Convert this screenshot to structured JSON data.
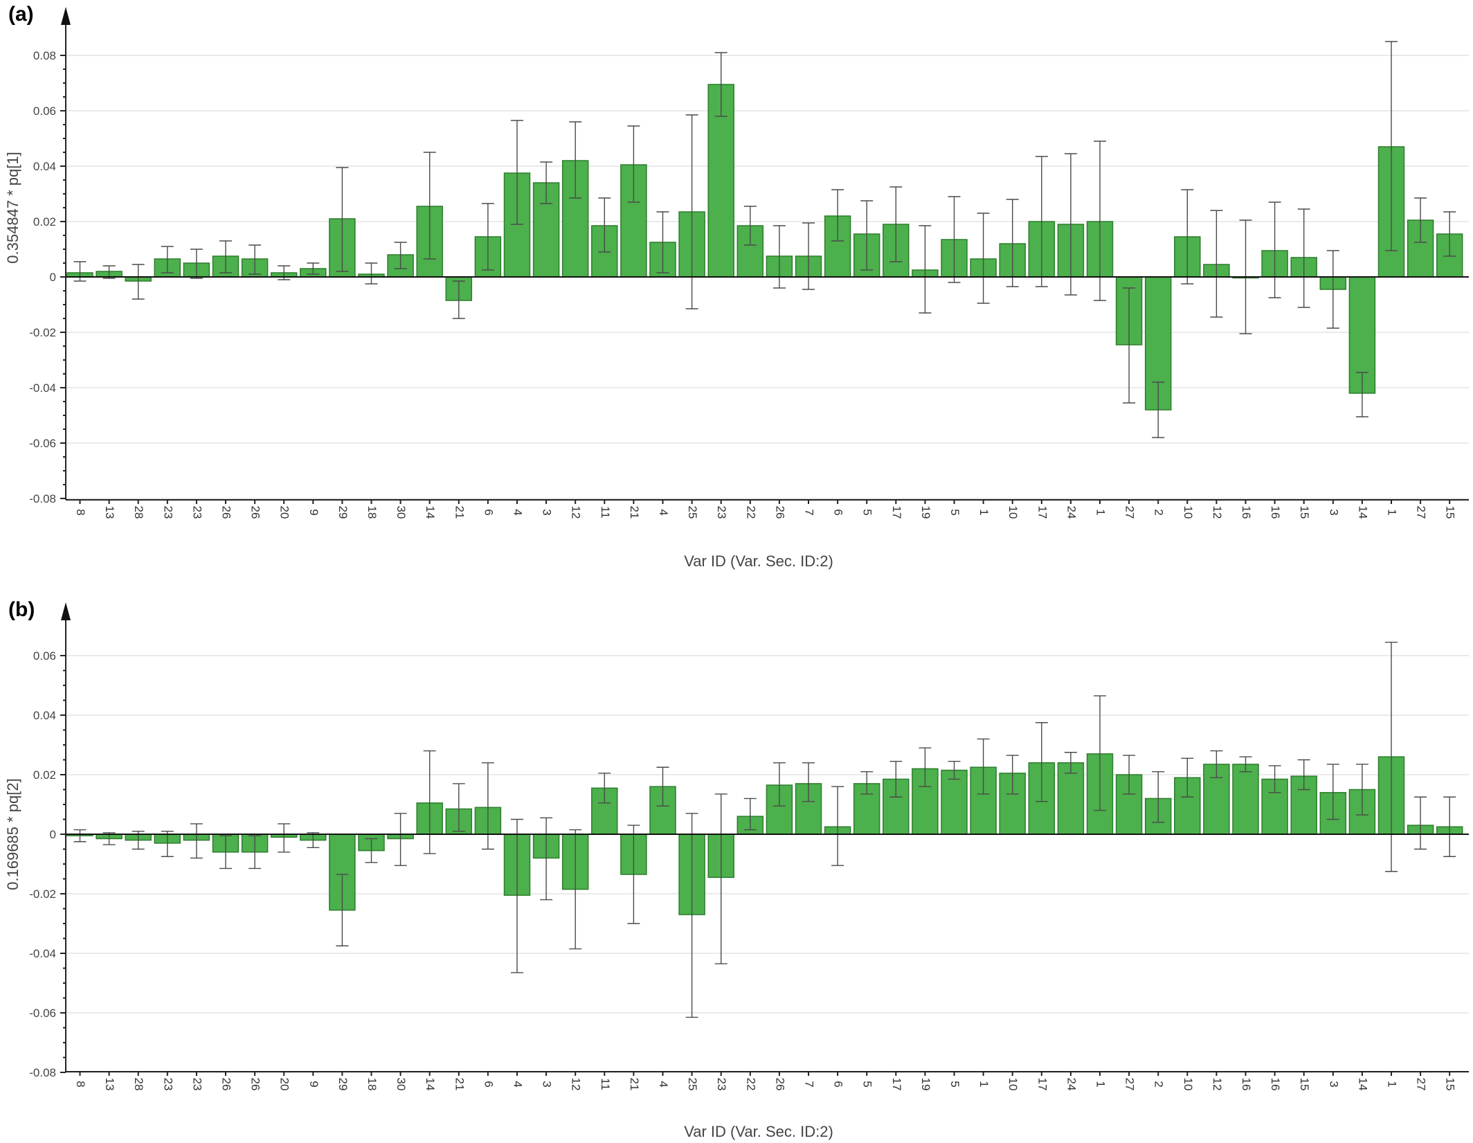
{
  "colors": {
    "bar": "#4cb04c",
    "bar_edge": "#2d7d2d",
    "error_bar": "#4a4a4a",
    "grid": "#e3e3e3"
  },
  "chart_data": [
    {
      "type": "bar",
      "panel_label": "(a)",
      "ylabel": "0.354847 * pq[1]",
      "xlabel": "Var ID (Var. Sec. ID:2)",
      "ylim": [
        -0.08,
        0.08
      ],
      "yticks": [
        "-0.08",
        "-0.06",
        "-0.04",
        "-0.02",
        "0",
        "0.02",
        "0.04",
        "0.06",
        "0.08"
      ],
      "ytick_values": [
        -0.08,
        -0.06,
        -0.04,
        -0.02,
        0,
        0.02,
        0.04,
        0.06,
        0.08
      ],
      "grid": true,
      "error_bars": true,
      "categories": [
        "8",
        "13",
        "28",
        "23",
        "23",
        "26",
        "26",
        "20",
        "9",
        "29",
        "18",
        "30",
        "14",
        "21",
        "6",
        "4",
        "3",
        "12",
        "11",
        "21",
        "4",
        "25",
        "23",
        "22",
        "26",
        "7",
        "6",
        "5",
        "17",
        "19",
        "5",
        "1",
        "10",
        "17",
        "24",
        "1",
        "27",
        "2",
        "10",
        "12",
        "16",
        "16",
        "15",
        "3",
        "14",
        "1",
        "27",
        "15"
      ],
      "values": [
        0.0015,
        0.002,
        -0.0015,
        0.0065,
        0.005,
        0.0075,
        0.0065,
        0.0015,
        0.003,
        0.021,
        0.001,
        0.008,
        0.0255,
        -0.0085,
        0.0145,
        0.0375,
        0.034,
        0.042,
        0.0185,
        0.0405,
        0.0125,
        0.0235,
        0.0695,
        0.0185,
        0.0075,
        0.0075,
        0.022,
        0.0155,
        0.019,
        0.0025,
        0.0135,
        0.0065,
        0.012,
        0.02,
        0.019,
        0.02,
        -0.0245,
        -0.048,
        0.0145,
        0.0045,
        0.0,
        0.0095,
        0.007,
        -0.0045,
        -0.042,
        0.047,
        0.0205,
        0.0155
      ],
      "err_low": [
        -0.0015,
        -0.0005,
        -0.008,
        0.0015,
        -0.0005,
        0.0015,
        0.001,
        -0.001,
        0.001,
        0.002,
        -0.0025,
        0.003,
        0.0065,
        -0.015,
        0.0025,
        0.019,
        0.0265,
        0.0285,
        0.009,
        0.027,
        0.0015,
        -0.0115,
        0.058,
        0.0115,
        -0.004,
        -0.0045,
        0.013,
        0.0025,
        0.0055,
        -0.013,
        -0.002,
        -0.0095,
        -0.0035,
        -0.0035,
        -0.0065,
        -0.0085,
        -0.0455,
        -0.058,
        -0.0025,
        -0.0145,
        -0.0205,
        -0.0075,
        -0.011,
        -0.0185,
        -0.0505,
        0.0095,
        0.0125,
        0.0075
      ],
      "err_high": [
        0.0055,
        0.004,
        0.0045,
        0.011,
        0.01,
        0.013,
        0.0115,
        0.004,
        0.005,
        0.0395,
        0.005,
        0.0125,
        0.045,
        -0.0015,
        0.0265,
        0.0565,
        0.0415,
        0.056,
        0.0285,
        0.0545,
        0.0235,
        0.0585,
        0.081,
        0.0255,
        0.0185,
        0.0195,
        0.0315,
        0.0275,
        0.0325,
        0.0185,
        0.029,
        0.023,
        0.028,
        0.0435,
        0.0445,
        0.049,
        -0.004,
        -0.038,
        0.0315,
        0.024,
        0.0205,
        0.027,
        0.0245,
        0.0095,
        -0.0345,
        0.085,
        0.0285,
        0.0235
      ]
    },
    {
      "type": "bar",
      "panel_label": "(b)",
      "ylabel": "0.169685 * pq[2]",
      "xlabel": "Var ID (Var. Sec. ID:2)",
      "ylim": [
        -0.08,
        0.07
      ],
      "yticks": [
        "-0.08",
        "-0.06",
        "-0.04",
        "-0.02",
        "0",
        "0.02",
        "0.04",
        "0.06"
      ],
      "ytick_values": [
        -0.08,
        -0.06,
        -0.04,
        -0.02,
        0,
        0.02,
        0.04,
        0.06
      ],
      "grid": true,
      "error_bars": true,
      "categories": [
        "8",
        "13",
        "28",
        "23",
        "23",
        "26",
        "26",
        "20",
        "9",
        "29",
        "18",
        "30",
        "14",
        "21",
        "6",
        "4",
        "3",
        "12",
        "11",
        "21",
        "4",
        "25",
        "23",
        "22",
        "26",
        "7",
        "6",
        "5",
        "17",
        "19",
        "5",
        "1",
        "10",
        "17",
        "24",
        "1",
        "27",
        "2",
        "10",
        "12",
        "16",
        "16",
        "15",
        "3",
        "14",
        "1",
        "27",
        "15"
      ],
      "values": [
        -0.0005,
        -0.0015,
        -0.002,
        -0.003,
        -0.002,
        -0.006,
        -0.006,
        -0.001,
        -0.002,
        -0.0255,
        -0.0055,
        -0.0015,
        0.0105,
        0.0085,
        0.009,
        -0.0205,
        -0.008,
        -0.0185,
        0.0155,
        -0.0135,
        0.016,
        -0.027,
        -0.0145,
        0.006,
        0.0165,
        0.017,
        0.0025,
        0.017,
        0.0185,
        0.022,
        0.0215,
        0.0225,
        0.0205,
        0.024,
        0.024,
        0.027,
        0.02,
        0.012,
        0.019,
        0.0235,
        0.0235,
        0.0185,
        0.0195,
        0.014,
        0.015,
        0.026,
        0.003,
        0.0025
      ],
      "err_low": [
        -0.0025,
        -0.0035,
        -0.005,
        -0.0075,
        -0.008,
        -0.0115,
        -0.0115,
        -0.006,
        -0.0045,
        -0.0375,
        -0.0095,
        -0.0105,
        -0.0065,
        0.001,
        -0.005,
        -0.0465,
        -0.022,
        -0.0385,
        0.0105,
        -0.03,
        0.0095,
        -0.0615,
        -0.0435,
        0.0015,
        0.0095,
        0.011,
        -0.0105,
        0.0135,
        0.0125,
        0.016,
        0.0185,
        0.0135,
        0.0135,
        0.011,
        0.0205,
        0.008,
        0.0135,
        0.004,
        0.0125,
        0.019,
        0.021,
        0.014,
        0.015,
        0.005,
        0.0065,
        -0.0125,
        -0.005,
        -0.0075
      ],
      "err_high": [
        0.0015,
        0.0005,
        0.001,
        0.001,
        0.0035,
        -0.0005,
        -0.0005,
        0.0035,
        0.0005,
        -0.0135,
        -0.0015,
        0.007,
        0.028,
        0.017,
        0.024,
        0.005,
        0.0055,
        0.0015,
        0.0205,
        0.003,
        0.0225,
        0.007,
        0.0135,
        0.012,
        0.024,
        0.024,
        0.016,
        0.021,
        0.0245,
        0.029,
        0.0245,
        0.032,
        0.0265,
        0.0375,
        0.0275,
        0.0465,
        0.0265,
        0.021,
        0.0255,
        0.028,
        0.026,
        0.023,
        0.025,
        0.0235,
        0.0235,
        0.0645,
        0.0125,
        0.0125
      ]
    }
  ]
}
